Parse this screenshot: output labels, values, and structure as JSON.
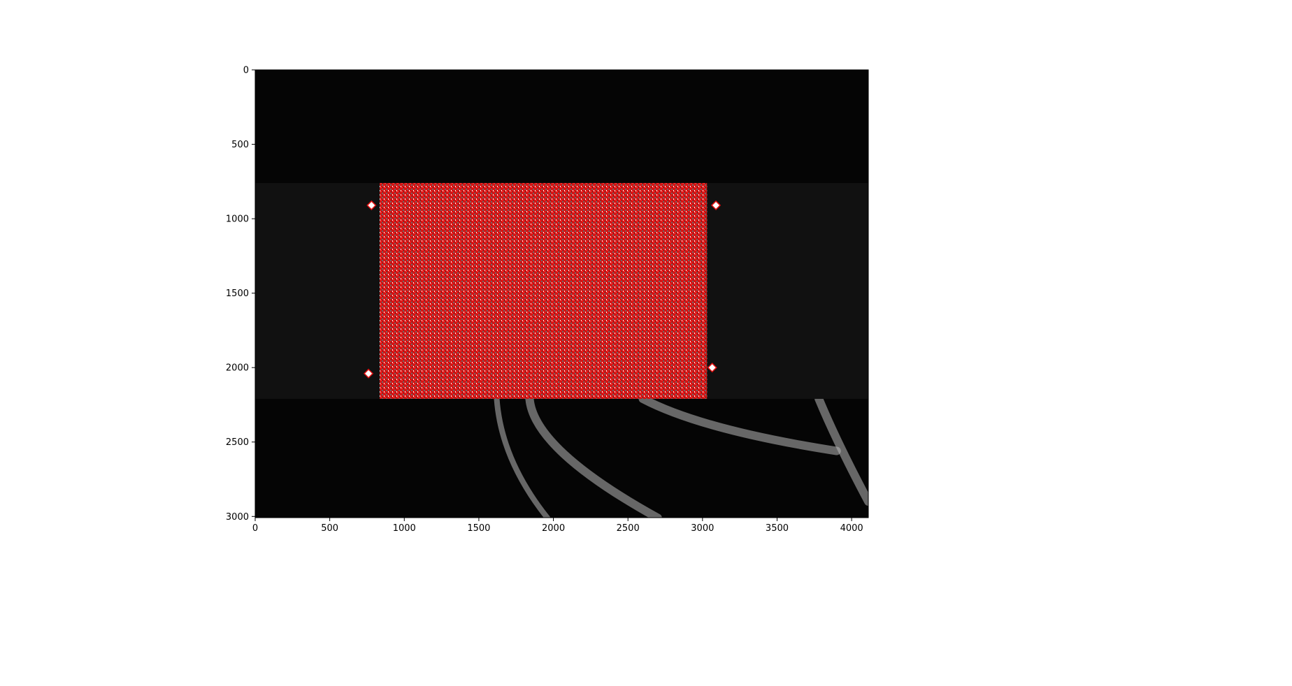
{
  "image": {
    "description_free": true,
    "x_axis": {
      "range": [
        0,
        4112
      ],
      "ticks": [
        0,
        500,
        1000,
        1500,
        2000,
        2500,
        3000,
        3500,
        4000
      ]
    },
    "y_axis": {
      "range": [
        0,
        3008
      ],
      "inverted": true,
      "ticks": [
        0,
        500,
        1000,
        1500,
        2000,
        2500,
        3000
      ]
    },
    "regions": {
      "specimen_band": {
        "y_range": [
          760,
          2210
        ],
        "color": "#101010"
      },
      "speckle_roi": {
        "x_range": [
          835,
          3030
        ],
        "y_range": [
          760,
          2210
        ],
        "color": "#ff1a1a"
      }
    },
    "markers": [
      {
        "x": 780,
        "y": 910
      },
      {
        "x": 760,
        "y": 2040
      },
      {
        "x": 3090,
        "y": 910
      },
      {
        "x": 3065,
        "y": 2000
      }
    ],
    "colors": {
      "background": "#050505",
      "band": "#111111",
      "overlay": "#e41010",
      "fibers": "#b8b8b8"
    }
  }
}
